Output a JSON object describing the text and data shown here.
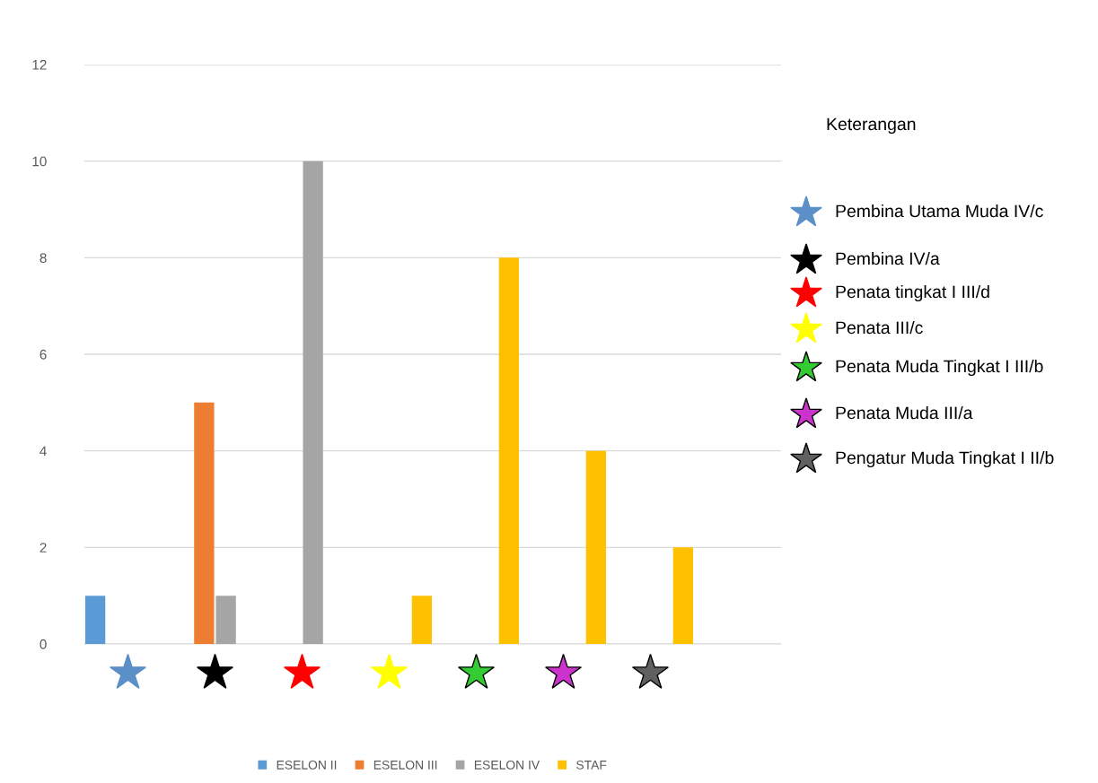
{
  "chart_data": {
    "type": "bar",
    "categories": [
      null,
      null,
      null,
      null,
      null,
      null,
      null,
      null
    ],
    "series": [
      {
        "name": "ESELON II",
        "color": "#5b9bd5",
        "values": [
          1,
          null,
          null,
          null,
          null,
          null,
          null,
          null
        ]
      },
      {
        "name": "ESELON III",
        "color": "#ed7d31",
        "values": [
          null,
          5,
          null,
          null,
          null,
          null,
          null,
          null
        ]
      },
      {
        "name": "ESELON IV",
        "color": "#a5a5a5",
        "values": [
          null,
          1,
          10,
          null,
          null,
          null,
          null,
          null
        ]
      },
      {
        "name": "STAF",
        "color": "#ffc000",
        "values": [
          null,
          null,
          null,
          1,
          8,
          4,
          2,
          null
        ]
      }
    ],
    "ylim": [
      0,
      12
    ],
    "yticks": [
      0,
      2,
      4,
      6,
      8,
      10,
      12
    ],
    "grid": "y",
    "legend": "bottom",
    "annotations": [
      "Keterangan",
      "Pembina Utama Muda IV/c",
      "Pembina IV/a",
      "Penata tingkat I III/d",
      "Penata III/c",
      "Penata Muda Tingkat I III/b",
      "Penata Muda III/a",
      "Pengatur Muda Tingkat I II/b"
    ]
  }
}
